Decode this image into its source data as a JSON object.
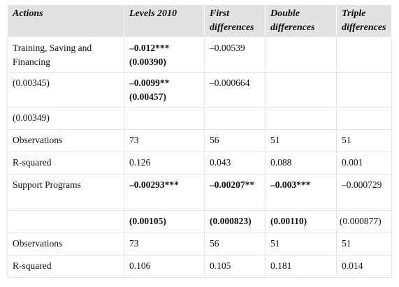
{
  "header": {
    "actions": "Actions",
    "levels": "Levels 2010",
    "first": "First differences",
    "double": "Double differences",
    "triple": "Triple differences"
  },
  "rows": {
    "r1": {
      "label": "Training, Saving and Financing",
      "levels": "–0.012***",
      "levels_se": "(0.00390)",
      "first": "–0.00539"
    },
    "r2": {
      "label": "(0.00345)",
      "levels": "–0.0099**",
      "levels_se": "(0.00457)",
      "first": "–0.000664"
    },
    "r3": {
      "label": "(0.00349)"
    },
    "r4": {
      "label": "Observations",
      "levels": "73",
      "first": "56",
      "double": "51",
      "triple": "51"
    },
    "r5": {
      "label": "R-squared",
      "levels": "0.126",
      "first": "0.043",
      "double": "0.088",
      "triple": "0.001"
    },
    "r6": {
      "label": "Support Programs",
      "levels": "–0.00293***",
      "first": "–0.00207**",
      "double": "–0.003***",
      "triple": "–0.000729"
    },
    "r7": {
      "levels": "(0.00105)",
      "first": "(0.000823)",
      "double": "(0.00110)",
      "triple": "(0.000877)"
    },
    "r8": {
      "label": "Observations",
      "levels": "73",
      "first": "56",
      "double": "51",
      "triple": "51"
    },
    "r9": {
      "label": "R-squared",
      "levels": "0.106",
      "first": "0.105",
      "double": "0.181",
      "triple": "0.014"
    }
  }
}
